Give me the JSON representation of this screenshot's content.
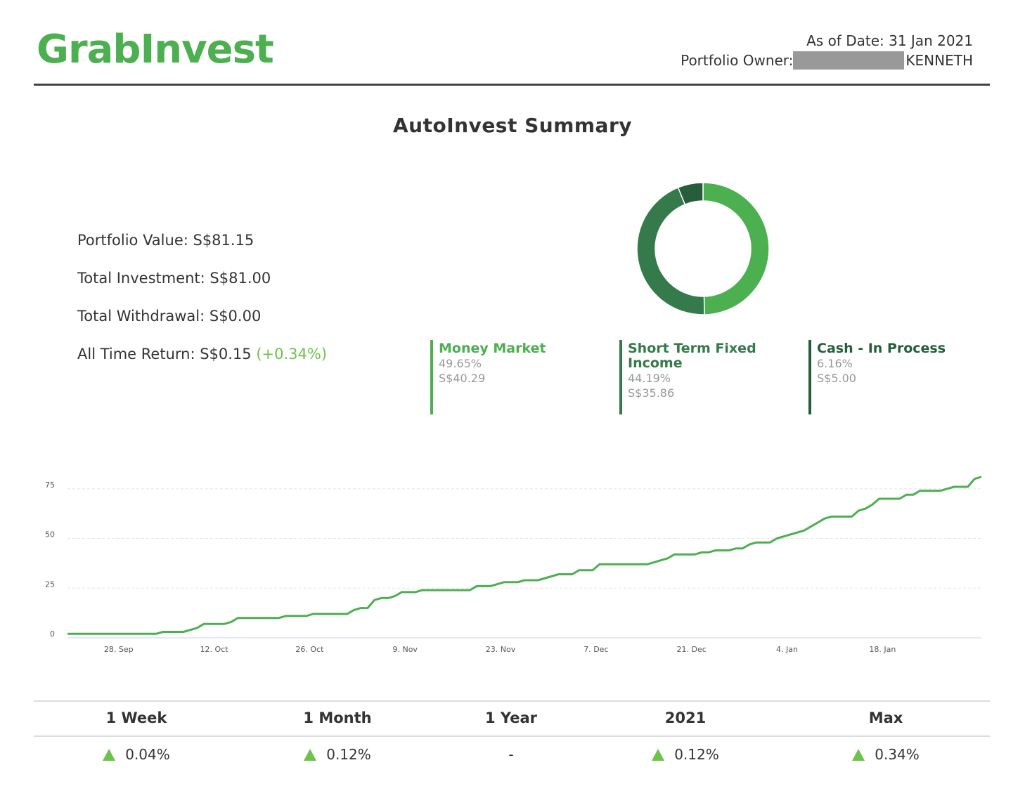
{
  "header": {
    "logo_text": "GrabInvest",
    "as_of_date": "As of Date: 31 Jan 2021",
    "owner_label": "Portfolio Owner:",
    "owner_name": "KENNETH"
  },
  "title": "AutoInvest Summary",
  "summary": {
    "portfolio_value": "Portfolio Value: S$81.15",
    "total_investment": "Total Investment: S$81.00",
    "total_withdrawal": "Total Withdrawal: S$0.00",
    "all_time_return": "All Time Return: S$0.15",
    "all_time_return_pct": "(+0.34%)"
  },
  "allocation": [
    {
      "name": "Money Market",
      "percent": "49.65%",
      "amount": "S$40.29",
      "value": 49.65,
      "color": "#4caf50"
    },
    {
      "name": "Short Term Fixed Income",
      "percent": "44.19%",
      "amount": "S$35.86",
      "value": 44.19,
      "color": "#357a4a"
    },
    {
      "name": "Cash - In Process",
      "percent": "6.16%",
      "amount": "S$5.00",
      "value": 6.16,
      "color": "#265e3c"
    }
  ],
  "chart_data": {
    "type": "line",
    "x_tick_labels": [
      "28. Sep",
      "12. Oct",
      "26. Oct",
      "9. Nov",
      "23. Nov",
      "7. Dec",
      "21. Dec",
      "4. Jan",
      "18. Jan"
    ],
    "y_tick_labels": [
      "0",
      "25",
      "50",
      "75"
    ],
    "ylim": [
      0,
      82
    ],
    "line_color": "#4caf50",
    "series": [
      {
        "values": [
          [
            0,
            2
          ],
          [
            13,
            2
          ],
          [
            14,
            3
          ],
          [
            17,
            3
          ],
          [
            19,
            5
          ],
          [
            20,
            7
          ],
          [
            23,
            7
          ],
          [
            24,
            8
          ],
          [
            25,
            10
          ],
          [
            31,
            10
          ],
          [
            32,
            11
          ],
          [
            35,
            11
          ],
          [
            36,
            12
          ],
          [
            41,
            12
          ],
          [
            42,
            14
          ],
          [
            43,
            15
          ],
          [
            44,
            15
          ],
          [
            45,
            19
          ],
          [
            46,
            20
          ],
          [
            47,
            20
          ],
          [
            48,
            21
          ],
          [
            49,
            23
          ],
          [
            51,
            23
          ],
          [
            52,
            24
          ],
          [
            59,
            24
          ],
          [
            60,
            26
          ],
          [
            62,
            26
          ],
          [
            64,
            28
          ],
          [
            66,
            28
          ],
          [
            67,
            29
          ],
          [
            69,
            29
          ],
          [
            72,
            32
          ],
          [
            74,
            32
          ],
          [
            75,
            34
          ],
          [
            77,
            34
          ],
          [
            78,
            37
          ],
          [
            85,
            37
          ],
          [
            88,
            40
          ],
          [
            89,
            42
          ],
          [
            92,
            42
          ],
          [
            93,
            43
          ],
          [
            94,
            43
          ],
          [
            95,
            44
          ],
          [
            97,
            44
          ],
          [
            98,
            45
          ],
          [
            99,
            45
          ],
          [
            100,
            47
          ],
          [
            101,
            48
          ],
          [
            103,
            48
          ],
          [
            104,
            50
          ],
          [
            108,
            54
          ],
          [
            110,
            58
          ],
          [
            111,
            60
          ],
          [
            112,
            61
          ],
          [
            115,
            61
          ],
          [
            116,
            64
          ],
          [
            117,
            65
          ],
          [
            118,
            67
          ],
          [
            119,
            70
          ],
          [
            122,
            70
          ],
          [
            123,
            72
          ],
          [
            124,
            72
          ],
          [
            125,
            74
          ],
          [
            128,
            74
          ],
          [
            130,
            76
          ],
          [
            132,
            76
          ],
          [
            133,
            80
          ],
          [
            134,
            81
          ]
        ]
      }
    ]
  },
  "performance": {
    "periods": [
      {
        "label": "1 Week",
        "value": "0.04%",
        "up": true
      },
      {
        "label": "1 Month",
        "value": "0.12%",
        "up": true
      },
      {
        "label": "1 Year",
        "value": "-",
        "up": false
      },
      {
        "label": "2021",
        "value": "0.12%",
        "up": true
      },
      {
        "label": "Max",
        "value": "0.34%",
        "up": true
      }
    ]
  }
}
